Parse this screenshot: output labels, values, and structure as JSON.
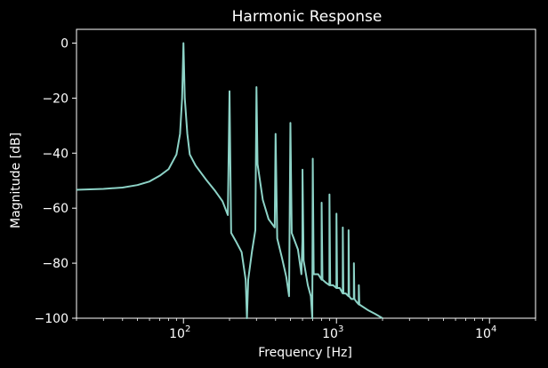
{
  "chart_data": {
    "type": "line",
    "title": "Harmonic Response",
    "xlabel": "Frequency [Hz]",
    "ylabel": "Magnitude [dB]",
    "xscale": "log",
    "xlim": [
      20,
      20000
    ],
    "ylim": [
      -100,
      5
    ],
    "x_ticks": [
      {
        "value": 100,
        "base": "10",
        "exp": "2"
      },
      {
        "value": 1000,
        "base": "10",
        "exp": "3"
      },
      {
        "value": 10000,
        "base": "10",
        "exp": "4"
      }
    ],
    "y_ticks": [
      0,
      -20,
      -40,
      -60,
      -80,
      -100
    ],
    "y_tick_labels": [
      "0",
      "−20",
      "−40",
      "−60",
      "−80",
      "−100"
    ],
    "grid": false,
    "background": "#000000",
    "series": [
      {
        "color": "#8dd3c7",
        "points": [
          [
            20,
            -53.3
          ],
          [
            30,
            -53.0
          ],
          [
            40,
            -52.5
          ],
          [
            50,
            -51.6
          ],
          [
            60,
            -50.3
          ],
          [
            70,
            -48.2
          ],
          [
            80,
            -45.8
          ],
          [
            90,
            -40.5
          ],
          [
            95,
            -33
          ],
          [
            98,
            -20
          ],
          [
            100,
            0
          ],
          [
            102,
            -20
          ],
          [
            106,
            -33
          ],
          [
            110,
            -40.5
          ],
          [
            120,
            -44.5
          ],
          [
            140,
            -49.5
          ],
          [
            160,
            -53.5
          ],
          [
            180,
            -57.5
          ],
          [
            195,
            -62.5
          ],
          [
            200,
            -17.5
          ],
          [
            205,
            -69
          ],
          [
            220,
            -72
          ],
          [
            240,
            -76
          ],
          [
            255,
            -86
          ],
          [
            260,
            -101
          ],
          [
            265,
            -86
          ],
          [
            280,
            -76
          ],
          [
            295,
            -68
          ],
          [
            300,
            -16
          ],
          [
            305,
            -44
          ],
          [
            330,
            -57
          ],
          [
            360,
            -64
          ],
          [
            395,
            -67
          ],
          [
            400,
            -33
          ],
          [
            410,
            -71
          ],
          [
            440,
            -78
          ],
          [
            470,
            -85
          ],
          [
            490,
            -92
          ],
          [
            500,
            -29
          ],
          [
            510,
            -69
          ],
          [
            560,
            -75
          ],
          [
            590,
            -84
          ],
          [
            599,
            -72
          ],
          [
            600,
            -46
          ],
          [
            610,
            -79
          ],
          [
            650,
            -88
          ],
          [
            680,
            -92
          ],
          [
            695,
            -101
          ],
          [
            700,
            -42
          ],
          [
            710,
            -84
          ],
          [
            760,
            -84
          ],
          [
            799,
            -86
          ],
          [
            800,
            -58
          ],
          [
            810,
            -86
          ],
          [
            850,
            -87
          ],
          [
            899,
            -88
          ],
          [
            900,
            -55
          ],
          [
            910,
            -88
          ],
          [
            950,
            -88
          ],
          [
            999,
            -89
          ],
          [
            1000,
            -62
          ],
          [
            1010,
            -89
          ],
          [
            1050,
            -89
          ],
          [
            1099,
            -91
          ],
          [
            1100,
            -67
          ],
          [
            1110,
            -91
          ],
          [
            1150,
            -91
          ],
          [
            1199,
            -92
          ],
          [
            1200,
            -68
          ],
          [
            1210,
            -92
          ],
          [
            1250,
            -93
          ],
          [
            1299,
            -93
          ],
          [
            1300,
            -80
          ],
          [
            1310,
            -93
          ],
          [
            1350,
            -94
          ],
          [
            1399,
            -95
          ],
          [
            1400,
            -88
          ],
          [
            1410,
            -95
          ],
          [
            1600,
            -97
          ],
          [
            1800,
            -98.5
          ],
          [
            2000,
            -100
          ]
        ]
      }
    ]
  }
}
